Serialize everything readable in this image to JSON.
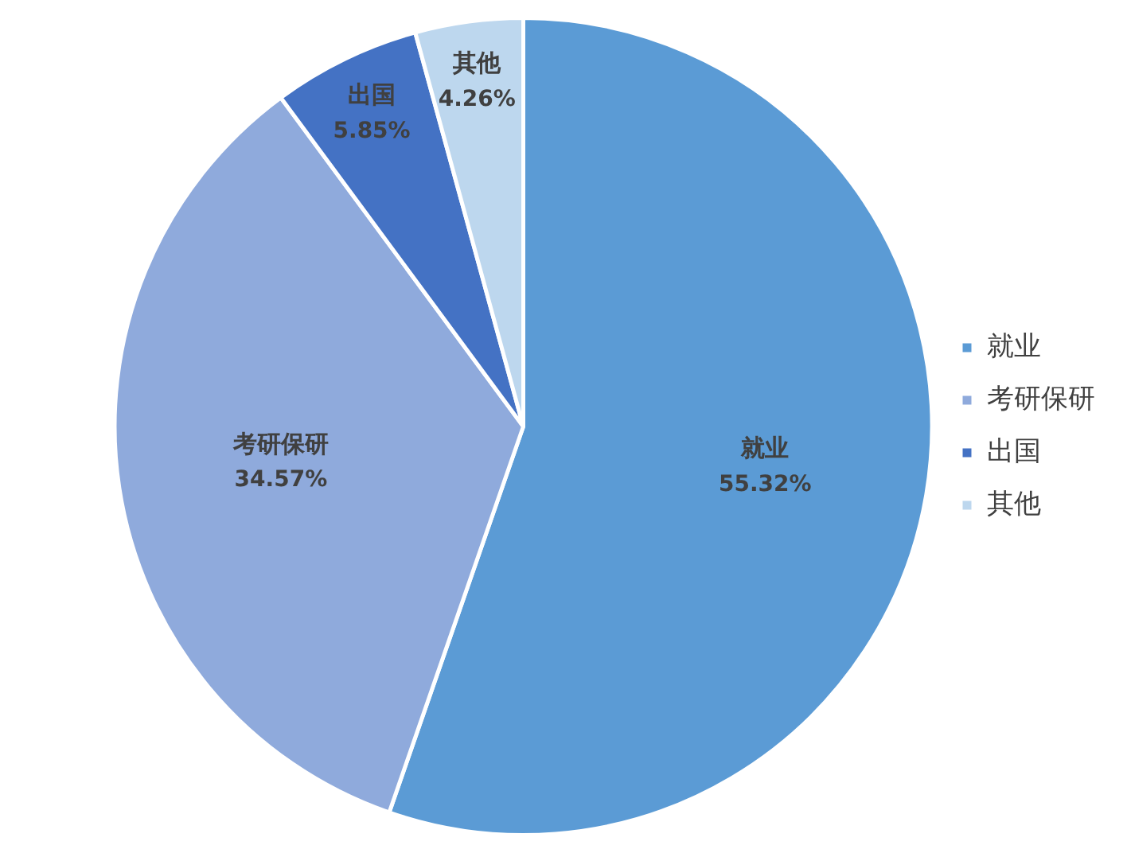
{
  "chart_data": {
    "type": "pie",
    "categories": [
      "就业",
      "考研保研",
      "出国",
      "其他"
    ],
    "values": [
      55.32,
      34.57,
      5.85,
      4.26
    ],
    "colors": [
      "#5b9bd5",
      "#8faadc",
      "#4472c4",
      "#bdd7ee"
    ],
    "value_labels": [
      "55.32%",
      "34.57%",
      "5.85%",
      "4.26%"
    ],
    "legend": "right"
  }
}
